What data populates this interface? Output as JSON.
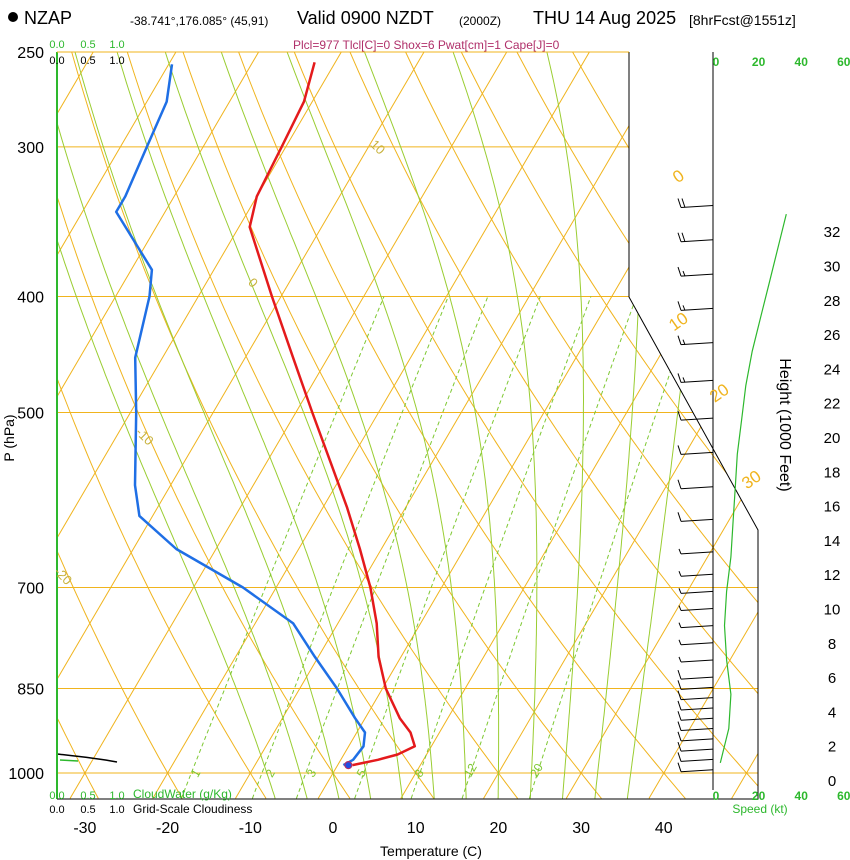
{
  "header": {
    "station": "NZAP",
    "coords": "-38.741°,176.085° (45,91)",
    "valid": "Valid 0900 NZDT",
    "zulu": "(2000Z)",
    "day_date": "THU 14 Aug 2025",
    "forecast": "[8hrFcst@1551z]",
    "indices": "Plcl=977 Tlcl[C]=0 Shox=6 Pwat[cm]=1 Cape[J]=0"
  },
  "colors": {
    "temperature": "#e41a1c",
    "dewpoint": "#1f6fe5",
    "isotherm": "#f0b41e",
    "dry_adiabat": "#f0b41e",
    "moist_adiabat": "#9acd32",
    "mixing_ratio": "#7ec832",
    "label_green": "#2db82d",
    "wind": "#000000"
  },
  "chart_data": {
    "type": "skew-t",
    "title": "Skew-T log-P sounding",
    "xlabel": "Temperature (C)",
    "ylabel": "P (hPa)",
    "right_ylabel": "Height (1000 Feet)",
    "x_ticks": [
      "-30",
      "-20",
      "-10",
      "0",
      "10",
      "20",
      "30",
      "40"
    ],
    "x_tick_values": [
      -30,
      -20,
      -10,
      0,
      10,
      20,
      30,
      40
    ],
    "p_ticks": [
      "250",
      "300",
      "400",
      "500",
      "700",
      "850",
      "1000"
    ],
    "p_tick_values": [
      250,
      300,
      400,
      500,
      700,
      850,
      1000
    ],
    "height_ticks": [
      "0",
      "2",
      "4",
      "6",
      "8",
      "10",
      "12",
      "14",
      "16",
      "18",
      "20",
      "22",
      "24",
      "26",
      "28",
      "30",
      "32"
    ],
    "height_tick_values_kft": [
      0,
      2,
      4,
      6,
      8,
      10,
      12,
      14,
      16,
      18,
      20,
      22,
      24,
      26,
      28,
      30,
      32
    ],
    "isotherm_labels": [
      {
        "text": "0",
        "t": 0,
        "p": 322
      },
      {
        "text": "10",
        "t": 10,
        "p": 428
      },
      {
        "text": "20",
        "t": 20,
        "p": 491
      },
      {
        "text": "30",
        "t": 30,
        "p": 580
      }
    ],
    "dry_adiabat_labels": [
      {
        "text": "10",
        "t": -40,
        "p": 299
      },
      {
        "text": "0",
        "t": -45,
        "p": 390
      },
      {
        "text": "-10",
        "t": -48,
        "p": 520
      },
      {
        "text": "-20",
        "t": -48,
        "p": 680
      },
      {
        "text": "-30",
        "t": -48,
        "p": 900
      }
    ],
    "mixing_ratio_labels": [
      {
        "text": "1",
        "t": -16,
        "p": 1010
      },
      {
        "text": "2",
        "t": -7,
        "p": 1010
      },
      {
        "text": "3",
        "t": -2,
        "p": 1010
      },
      {
        "text": "5",
        "t": 4,
        "p": 1010
      },
      {
        "text": "8",
        "t": 11,
        "p": 1010
      },
      {
        "text": "12",
        "t": 17,
        "p": 1010
      },
      {
        "text": "20",
        "t": 25,
        "p": 1010
      }
    ],
    "temperature_profile": {
      "name": "Temperature",
      "points": [
        {
          "p": 985,
          "t": 1.8
        },
        {
          "p": 975,
          "t": 4.5
        },
        {
          "p": 965,
          "t": 6.5
        },
        {
          "p": 950,
          "t": 8.0
        },
        {
          "p": 925,
          "t": 6.5
        },
        {
          "p": 900,
          "t": 4.2
        },
        {
          "p": 850,
          "t": 0.4
        },
        {
          "p": 800,
          "t": -2.7
        },
        {
          "p": 750,
          "t": -5.3
        },
        {
          "p": 700,
          "t": -8.6
        },
        {
          "p": 650,
          "t": -12.6
        },
        {
          "p": 600,
          "t": -17.1
        },
        {
          "p": 550,
          "t": -22.3
        },
        {
          "p": 500,
          "t": -28.0
        },
        {
          "p": 450,
          "t": -34.2
        },
        {
          "p": 400,
          "t": -41.1
        },
        {
          "p": 350,
          "t": -48.7
        },
        {
          "p": 330,
          "t": -50.0
        },
        {
          "p": 300,
          "t": -50.5
        },
        {
          "p": 275,
          "t": -51.0
        },
        {
          "p": 255,
          "t": -52.5
        }
      ]
    },
    "dewpoint_profile": {
      "name": "Dewpoint",
      "points": [
        {
          "p": 985,
          "t": 0.7
        },
        {
          "p": 975,
          "t": 1.5
        },
        {
          "p": 950,
          "t": 1.8
        },
        {
          "p": 925,
          "t": 1.0
        },
        {
          "p": 900,
          "t": -1.2
        },
        {
          "p": 850,
          "t": -5.5
        },
        {
          "p": 800,
          "t": -10.4
        },
        {
          "p": 750,
          "t": -15.4
        },
        {
          "p": 700,
          "t": -24.0
        },
        {
          "p": 650,
          "t": -34.8
        },
        {
          "p": 610,
          "t": -41.6
        },
        {
          "p": 575,
          "t": -44.3
        },
        {
          "p": 500,
          "t": -49.3
        },
        {
          "p": 450,
          "t": -53.3
        },
        {
          "p": 400,
          "t": -55.9
        },
        {
          "p": 380,
          "t": -57.5
        },
        {
          "p": 340,
          "t": -65.9
        },
        {
          "p": 330,
          "t": -65.9
        },
        {
          "p": 300,
          "t": -66.8
        },
        {
          "p": 275,
          "t": -67.6
        },
        {
          "p": 256,
          "t": -69.6
        }
      ]
    },
    "surface_marker": {
      "p": 985,
      "t": 1.3
    },
    "wind_speed_profile": {
      "name": "Speed (kt)",
      "axis_ticks": [
        "0",
        "20",
        "40",
        "60"
      ],
      "axis_values": [
        0,
        20,
        40,
        60
      ],
      "points": [
        {
          "h": 1,
          "s": 2
        },
        {
          "h": 3,
          "s": 6
        },
        {
          "h": 5,
          "s": 7
        },
        {
          "h": 7,
          "s": 5
        },
        {
          "h": 9,
          "s": 4
        },
        {
          "h": 11,
          "s": 5
        },
        {
          "h": 13,
          "s": 7
        },
        {
          "h": 15,
          "s": 8
        },
        {
          "h": 17,
          "s": 9
        },
        {
          "h": 19,
          "s": 10
        },
        {
          "h": 21,
          "s": 12
        },
        {
          "h": 23,
          "s": 14
        },
        {
          "h": 25,
          "s": 17
        },
        {
          "h": 27,
          "s": 21
        },
        {
          "h": 29,
          "s": 25
        },
        {
          "h": 31,
          "s": 29
        },
        {
          "h": 33,
          "s": 33
        }
      ]
    },
    "wind_barbs": [
      {
        "h": 0.6,
        "s": 10
      },
      {
        "h": 1.2,
        "s": 10
      },
      {
        "h": 1.8,
        "s": 10
      },
      {
        "h": 2.4,
        "s": 10
      },
      {
        "h": 3.0,
        "s": 10
      },
      {
        "h": 3.6,
        "s": 10
      },
      {
        "h": 4.2,
        "s": 10
      },
      {
        "h": 4.8,
        "s": 10
      },
      {
        "h": 5.4,
        "s": 10
      },
      {
        "h": 6.0,
        "s": 10
      },
      {
        "h": 7.0,
        "s": 5
      },
      {
        "h": 8.0,
        "s": 5
      },
      {
        "h": 9.0,
        "s": 5
      },
      {
        "h": 10.0,
        "s": 5
      },
      {
        "h": 11.0,
        "s": 5
      },
      {
        "h": 12.0,
        "s": 5
      },
      {
        "h": 13.3,
        "s": 5
      },
      {
        "h": 15.2,
        "s": 10
      },
      {
        "h": 17.1,
        "s": 10
      },
      {
        "h": 19.1,
        "s": 10
      },
      {
        "h": 21.1,
        "s": 10
      },
      {
        "h": 23.3,
        "s": 15
      },
      {
        "h": 25.5,
        "s": 15
      },
      {
        "h": 27.5,
        "s": 15
      },
      {
        "h": 29.5,
        "s": 15
      },
      {
        "h": 31.5,
        "s": 20
      },
      {
        "h": 33.5,
        "s": 20
      }
    ],
    "cloud_scale": {
      "cloud_water_ticks": [
        "0.0",
        "0.5",
        "1.0"
      ],
      "cloudiness_ticks": [
        "0.0",
        "0.5",
        "1.0"
      ],
      "cloud_water_label": "CloudWater (g/Kg)",
      "cloudiness_label": "Grid-Scale Cloudiness"
    },
    "grid": true
  }
}
